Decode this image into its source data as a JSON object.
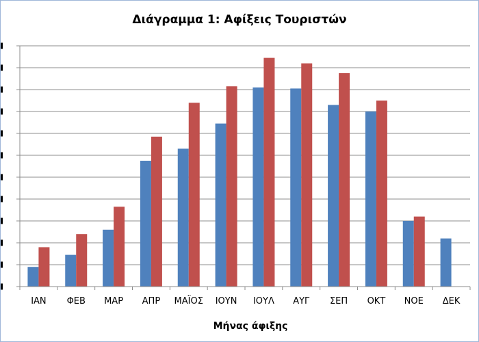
{
  "chart_data": {
    "type": "bar",
    "title": "Διάγραμμα 1: Αφίξεις Τουριστών",
    "xlabel": "Μήνας άφιξης",
    "ylabel": "",
    "categories": [
      "ΙΑΝ",
      "ΦΕΒ",
      "ΜΑΡ",
      "ΑΠΡ",
      "ΜΑΪΟΣ",
      "ΙΟΥΝ",
      "ΙΟΥΛ",
      "ΑΥΓ",
      "ΣΕΠ",
      "ΟΚΤ",
      "ΝΟΕ",
      "ΔΕΚ"
    ],
    "ylim": [
      0,
      11
    ],
    "grid": true,
    "legend": "none",
    "series": [
      {
        "color": "#4f81bd",
        "values": [
          0.9,
          1.45,
          2.6,
          5.75,
          6.3,
          7.45,
          9.1,
          9.05,
          8.3,
          8.0,
          3.0,
          2.2
        ]
      },
      {
        "color": "#c0504d",
        "values": [
          1.8,
          2.4,
          3.65,
          6.85,
          8.4,
          9.15,
          10.45,
          10.2,
          9.75,
          8.5,
          3.2,
          null
        ]
      }
    ]
  }
}
